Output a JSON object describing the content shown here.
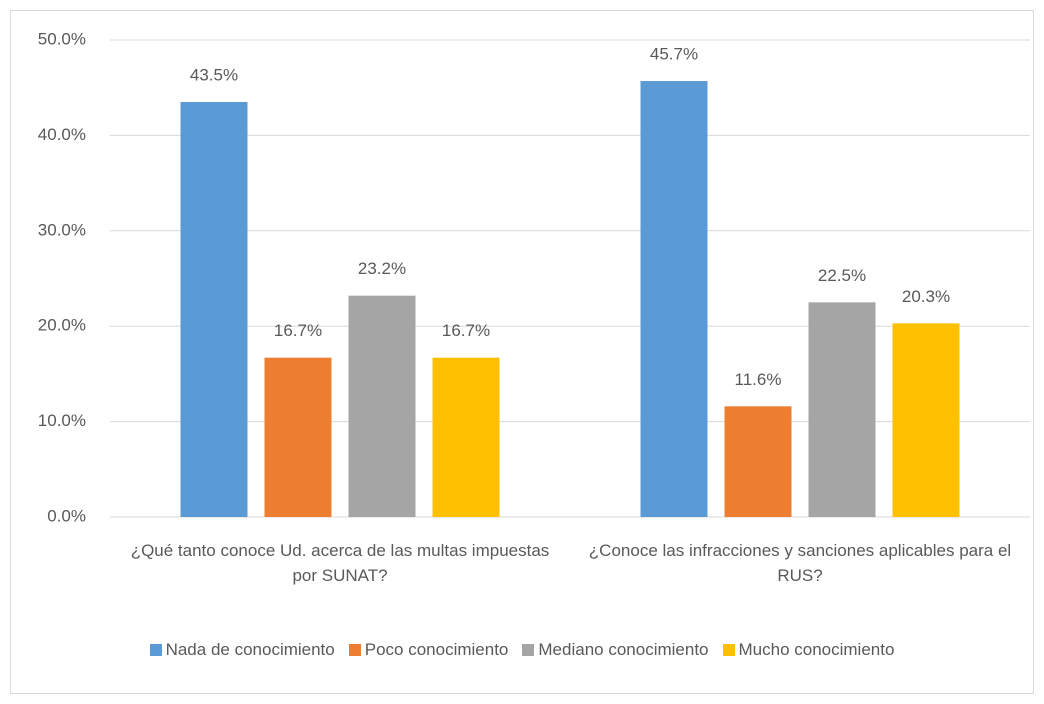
{
  "chart_data": {
    "type": "bar",
    "categories": [
      "¿Qué tanto conoce Ud. acerca de las multas impuestas por SUNAT?",
      "¿Conoce las infracciones y sanciones aplicables para el RUS?"
    ],
    "series": [
      {
        "name": "Nada de conocimiento",
        "color": "#5b9bd5",
        "values": [
          43.5,
          45.7
        ],
        "value_labels": [
          "43.5%",
          "45.7%"
        ]
      },
      {
        "name": "Poco conocimiento",
        "color": "#ed7d31",
        "values": [
          16.7,
          11.6
        ],
        "value_labels": [
          "16.7%",
          "11.6%"
        ]
      },
      {
        "name": "Mediano conocimiento",
        "color": "#a5a5a5",
        "values": [
          23.2,
          22.5
        ],
        "value_labels": [
          "23.2%",
          "22.5%"
        ]
      },
      {
        "name": "Mucho conocimiento",
        "color": "#ffc000",
        "values": [
          16.7,
          20.3
        ],
        "value_labels": [
          "16.7%",
          "20.3%"
        ]
      }
    ],
    "ylim": [
      0,
      50
    ],
    "yticks": [
      {
        "value": 0,
        "label": "0.0%"
      },
      {
        "value": 10,
        "label": "10.0%"
      },
      {
        "value": 20,
        "label": "20.0%"
      },
      {
        "value": 30,
        "label": "30.0%"
      },
      {
        "value": 40,
        "label": "40.0%"
      },
      {
        "value": 50,
        "label": "50.0%"
      }
    ],
    "grid": true,
    "legend": "bottom"
  }
}
